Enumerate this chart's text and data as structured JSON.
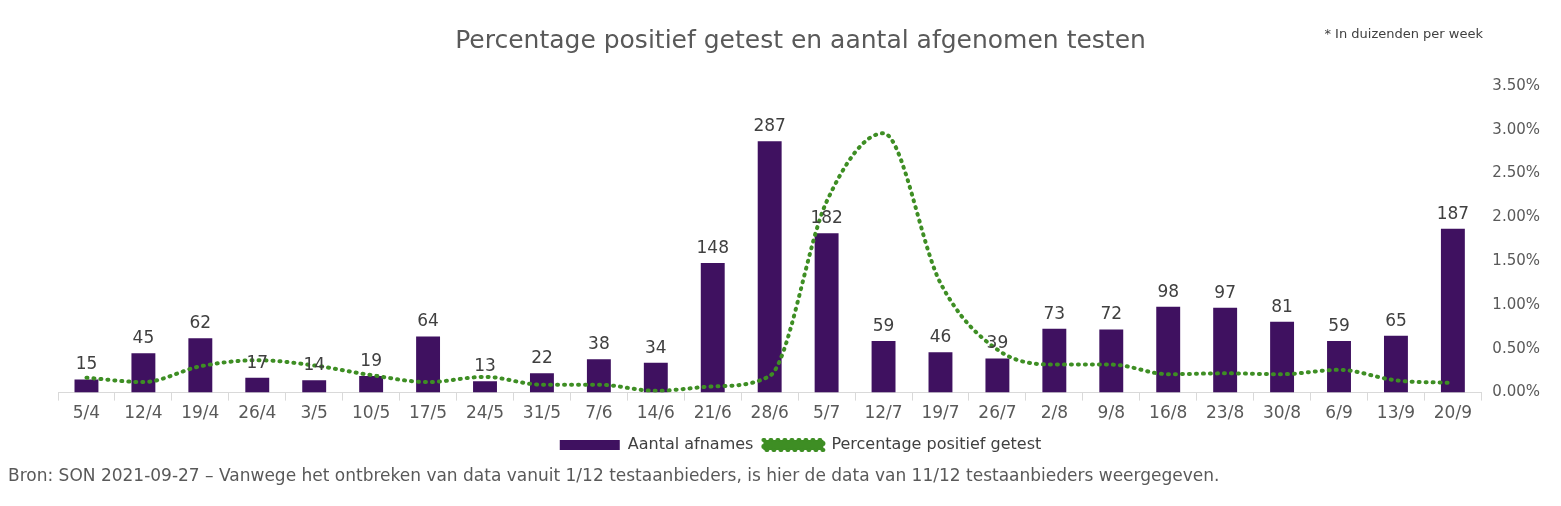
{
  "chart_data": {
    "type": "bar",
    "title": "Percentage positief getest en aantal afgenomen testen",
    "categories": [
      "5/4",
      "12/4",
      "19/4",
      "26/4",
      "3/5",
      "10/5",
      "17/5",
      "24/5",
      "31/5",
      "7/6",
      "14/6",
      "21/6",
      "28/6",
      "5/7",
      "12/7",
      "19/7",
      "26/7",
      "2/8",
      "9/8",
      "16/8",
      "23/8",
      "30/8",
      "6/9",
      "13/9",
      "20/9"
    ],
    "series": [
      {
        "name": "Aantal afnames",
        "color": "#3f1160",
        "values": [
          15,
          45,
          62,
          17,
          14,
          19,
          64,
          13,
          22,
          38,
          34,
          148,
          287,
          182,
          59,
          46,
          39,
          73,
          72,
          98,
          97,
          81,
          59,
          65,
          187
        ],
        "value_labels": [
          "15",
          "45",
          "62",
          "17",
          "14",
          "19",
          "64",
          "13",
          "22",
          "38",
          "34",
          "148",
          "287",
          "182",
          "59",
          "46",
          "39",
          "73",
          "72",
          "98",
          "97",
          "81",
          "59",
          "65",
          "187"
        ]
      },
      {
        "name": "Percentage positief getest",
        "type": "line",
        "axis": "y2",
        "color": "#3e8e24",
        "line_style": "dotted",
        "marker": "none",
        "values": [
          0.17,
          0.12,
          0.3,
          0.37,
          0.31,
          0.2,
          0.12,
          0.18,
          0.09,
          0.09,
          0.02,
          0.07,
          0.19,
          2.18,
          2.96,
          1.25,
          0.49,
          0.32,
          0.32,
          0.21,
          0.22,
          0.21,
          0.26,
          0.14,
          0.11
        ]
      }
    ],
    "y2lim": [
      0,
      3.5
    ],
    "y2ticks": [
      {
        "value": 0,
        "label": "0.00%"
      },
      {
        "value": 0.5,
        "label": "0.50%"
      },
      {
        "value": 1,
        "label": "1.00%"
      },
      {
        "value": 1.5,
        "label": "1.50%"
      },
      {
        "value": 2,
        "label": "2.00%"
      },
      {
        "value": 2.5,
        "label": "2.50%"
      },
      {
        "value": 3,
        "label": "3.00%"
      },
      {
        "value": 3.5,
        "label": "3.50%"
      }
    ],
    "grid": false,
    "legend": "bottom",
    "annotations": [
      "* In duizenden per week",
      "Bron: SON 2021-09-27 – Vanwege het ontbreken van data vanuit 1/12 testaanbieders, is hier de data van 11/12 testaanbieders weergegeven."
    ]
  }
}
